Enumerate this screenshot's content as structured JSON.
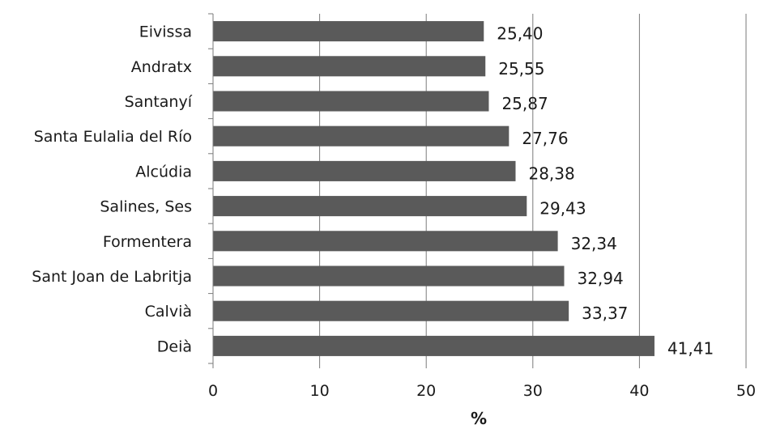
{
  "chart_data": {
    "type": "bar",
    "orientation": "horizontal",
    "categories": [
      "Eivissa",
      "Andratx",
      "Santanyí",
      "Santa Eulalia del Río",
      "Alcúdia",
      "Salines, Ses",
      "Formentera",
      "Sant Joan de Labritja",
      "Calvià",
      "Deià"
    ],
    "values": [
      25.4,
      25.55,
      25.87,
      27.76,
      28.38,
      29.43,
      32.34,
      32.94,
      33.37,
      41.41
    ],
    "value_labels": [
      "25,40",
      "25,55",
      "25,87",
      "27,76",
      "28,38",
      "29,43",
      "32,34",
      "32,94",
      "33,37",
      "41,41"
    ],
    "title": "",
    "xlabel": "%",
    "ylabel": "",
    "xlim": [
      0,
      50
    ],
    "x_ticks": [
      0,
      10,
      20,
      30,
      40,
      50
    ],
    "x_tick_labels": [
      "0",
      "10",
      "20",
      "30",
      "40",
      "50"
    ],
    "grid": "vertical",
    "legend": "none",
    "bar_color": "#5a5a5a"
  }
}
